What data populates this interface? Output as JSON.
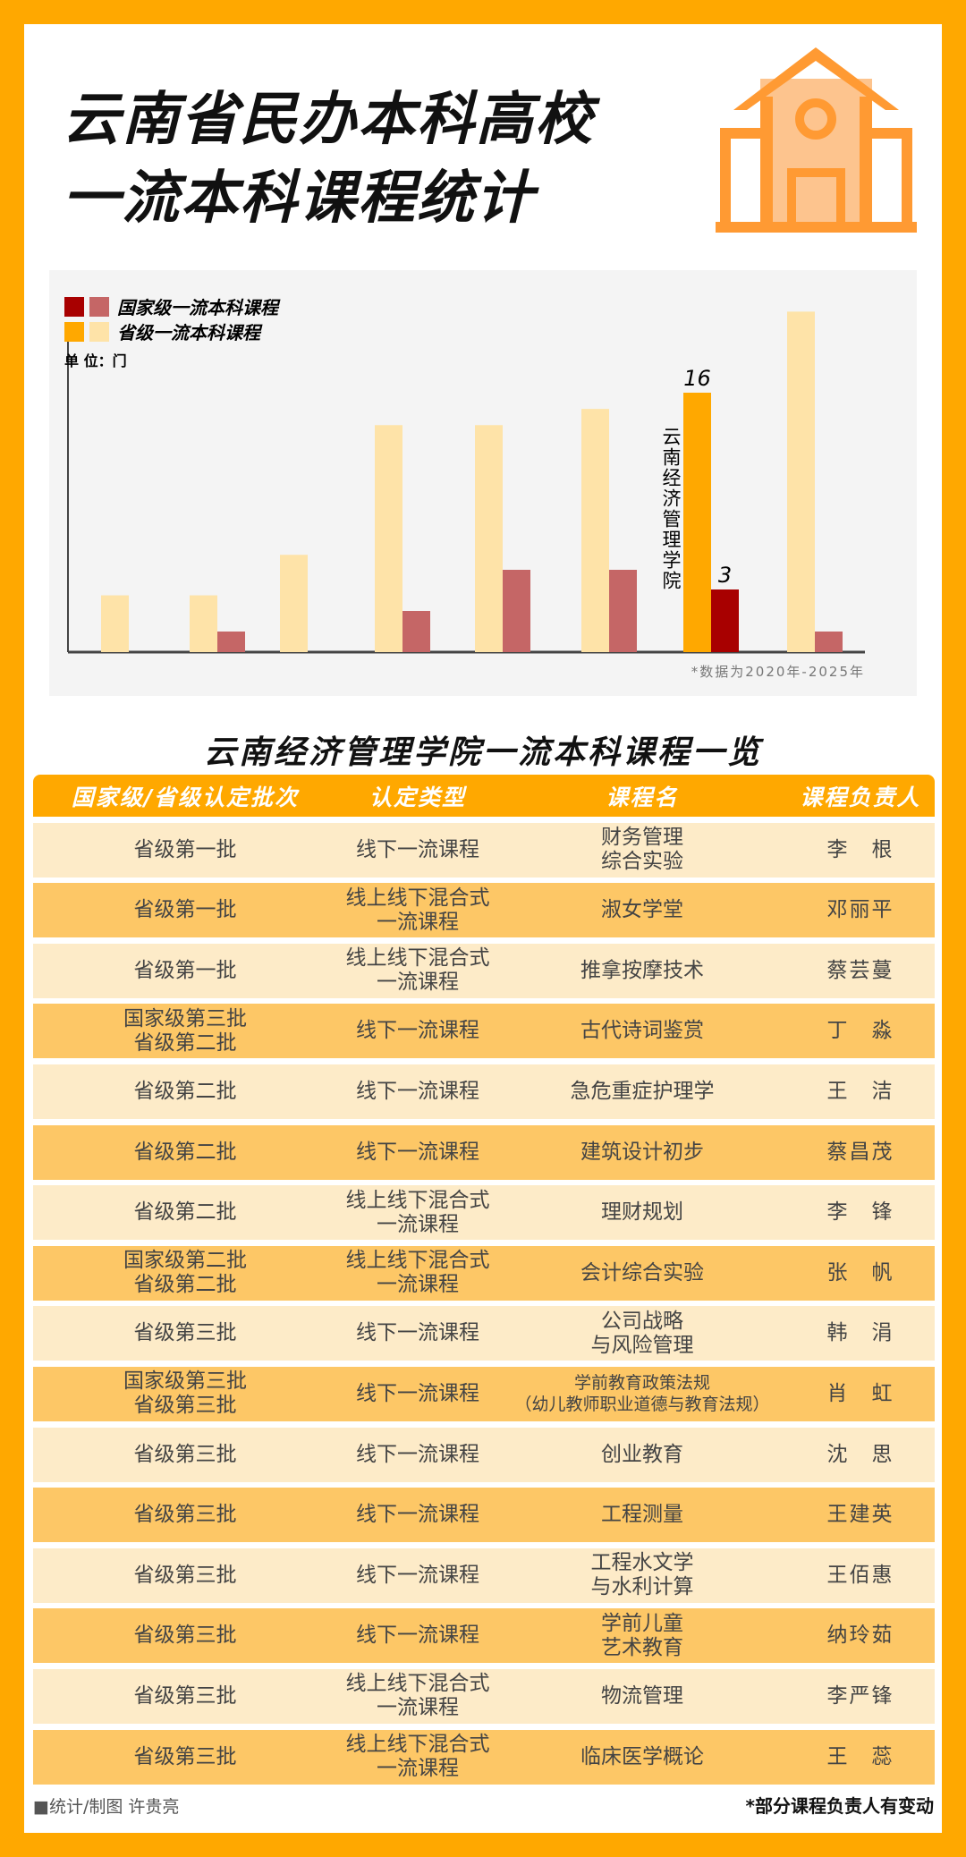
{
  "title": [
    "云南省民办本科高校",
    "一流本科课程统计"
  ],
  "colors": {
    "frame": "#ffa800",
    "national_highlight": "#a80000",
    "national": "#c56666",
    "provincial_highlight": "#ffa800",
    "provincial": "#fee3a8"
  },
  "chart_data": {
    "type": "bar",
    "legend": [
      {
        "name": "国家级一流本科课程"
      },
      {
        "name": "省级一流本科课程"
      }
    ],
    "unit": "单 位：门",
    "note": "*数据为2020年-2025年",
    "highlight_label": "云南经济管理学院",
    "highlight_index": 6,
    "series": [
      {
        "name": "省级一流本科课程",
        "values": [
          3.5,
          3.5,
          6,
          14,
          14,
          15,
          16,
          21
        ]
      },
      {
        "name": "国家级一流本科课程",
        "values": [
          0,
          1,
          0,
          2,
          4,
          4,
          3,
          1
        ]
      }
    ],
    "data_labels": {
      "provincial": "16",
      "national": "3"
    },
    "legend_placement": "top-left"
  },
  "table": {
    "title": "云南经济管理学院一流本科课程一览",
    "headers": [
      "国家级/省级认定批次",
      "认定类型",
      "课程名",
      "课程负责人"
    ],
    "rows": [
      [
        "省级第一批",
        "线下一流课程",
        "财务管理\n综合实验",
        "李　根"
      ],
      [
        "省级第一批",
        "线上线下混合式\n一流课程",
        "淑女学堂",
        "邓丽平"
      ],
      [
        "省级第一批",
        "线上线下混合式\n一流课程",
        "推拿按摩技术",
        "蔡芸蔓"
      ],
      [
        "国家级第三批\n省级第二批",
        "线下一流课程",
        "古代诗词鉴赏",
        "丁　淼"
      ],
      [
        "省级第二批",
        "线下一流课程",
        "急危重症护理学",
        "王　洁"
      ],
      [
        "省级第二批",
        "线下一流课程",
        "建筑设计初步",
        "蔡昌茂"
      ],
      [
        "省级第二批",
        "线上线下混合式\n一流课程",
        "理财规划",
        "李　锋"
      ],
      [
        "国家级第二批\n省级第二批",
        "线上线下混合式\n一流课程",
        "会计综合实验",
        "张　帆"
      ],
      [
        "省级第三批",
        "线下一流课程",
        "公司战略\n与风险管理",
        "韩　涓"
      ],
      [
        "国家级第三批\n省级第三批",
        "线下一流课程",
        "学前教育政策法规\n（幼儿教师职业道德与教育法规）",
        "肖　虹"
      ],
      [
        "省级第三批",
        "线下一流课程",
        "创业教育",
        "沈　思"
      ],
      [
        "省级第三批",
        "线下一流课程",
        "工程测量",
        "王建英"
      ],
      [
        "省级第三批",
        "线下一流课程",
        "工程水文学\n与水利计算",
        "王佰惠"
      ],
      [
        "省级第三批",
        "线下一流课程",
        "学前儿童\n艺术教育",
        "纳玲茹"
      ],
      [
        "省级第三批",
        "线上线下混合式\n一流课程",
        "物流管理",
        "李严锋"
      ],
      [
        "省级第三批",
        "线上线下混合式\n一流课程",
        "临床医学概论",
        "王　蕊"
      ]
    ]
  },
  "footer": {
    "credit": "■统计/制图 许贵亮",
    "note": "*部分课程负责人有变动"
  }
}
